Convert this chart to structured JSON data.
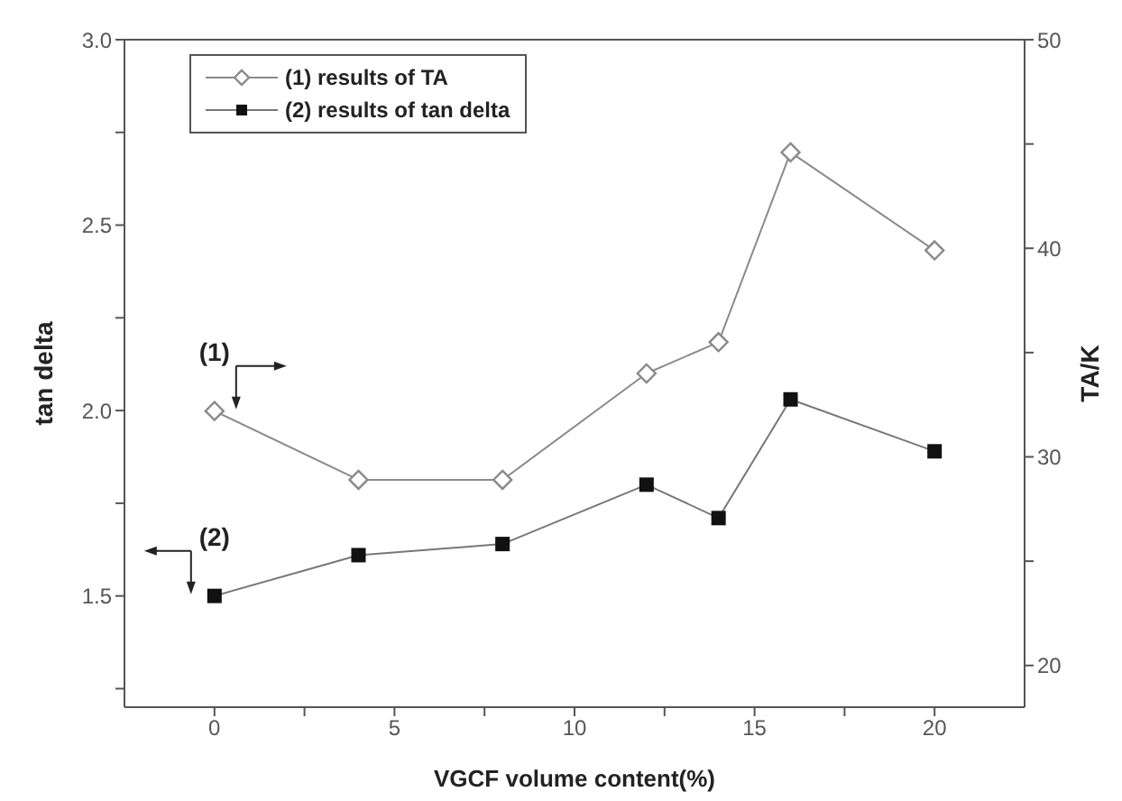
{
  "chart_data": {
    "type": "line",
    "xlabel": "VGCF volume content(%)",
    "ylabel": "tan delta",
    "y2label": "TA/K",
    "x": [
      0,
      4,
      8,
      12,
      14,
      16,
      20
    ],
    "series": [
      {
        "name": "(1) results of TA",
        "color": "#8a8a8a",
        "marker": "diamond",
        "axis": "y2",
        "values": [
          32.2,
          28.9,
          28.9,
          34.0,
          35.5,
          44.6,
          39.9
        ]
      },
      {
        "name": "(2) results of tan delta",
        "color": "#111111",
        "marker": "square",
        "values": [
          1.5,
          1.61,
          1.64,
          1.8,
          1.71,
          2.03,
          1.89
        ]
      }
    ],
    "xlim": [
      -2.5,
      22.5
    ],
    "xticks": [
      0,
      {
        "value": 2.5,
        "label": null
      },
      5,
      {
        "value": 7.5,
        "label": null
      },
      10,
      {
        "value": 12.5,
        "label": null
      },
      15,
      {
        "value": 17.5,
        "label": null
      },
      20
    ],
    "ylim": [
      1.2,
      3.0
    ],
    "yticks": [
      {
        "value": 1.25,
        "label": null
      },
      1.5,
      {
        "value": 1.75,
        "label": null
      },
      "2.0",
      {
        "value": 2.25,
        "label": null
      },
      2.5,
      {
        "value": 2.75,
        "label": null
      },
      "3.0"
    ],
    "y2lim": [
      18,
      50
    ],
    "y2ticks": [
      20,
      {
        "value": 25,
        "label": null
      },
      30,
      {
        "value": 35,
        "label": null
      },
      40,
      {
        "value": 45,
        "label": null
      },
      50
    ],
    "annotations": [
      "(1)",
      "(2)"
    ],
    "legend": "top left",
    "grid": false,
    "line_style": "solid"
  }
}
